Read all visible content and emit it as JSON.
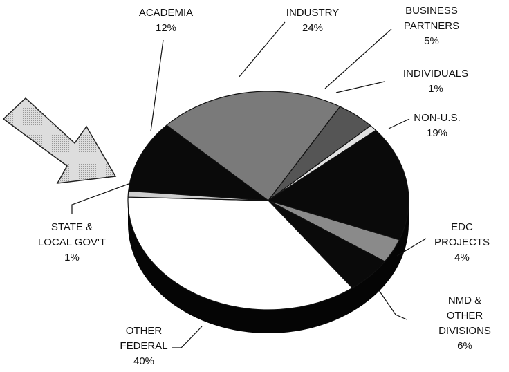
{
  "chart_data": {
    "type": "pie3d",
    "categories": [
      "ACADEMIA",
      "INDUSTRY",
      "BUSINESS\nPARTNERS",
      "INDIVIDUALS",
      "NON-U.S.",
      "EDC\nPROJECTS",
      "NMD & OTHER\nDIVISIONS",
      "OTHER\nFEDERAL",
      "STATE &\nLOCAL GOV'T"
    ],
    "values": [
      12,
      24,
      5,
      1,
      19,
      4,
      6,
      40,
      1
    ],
    "value_labels": [
      "12%",
      "24%",
      "5%",
      "1%",
      "19%",
      "4%",
      "6%",
      "40%",
      "1%"
    ],
    "colors": [
      "#0a0a0a",
      "#7a7a7a",
      "#555555",
      "#e2e2e2",
      "#0a0a0a",
      "#8a8a8a",
      "#0a0a0a",
      "#ffffff",
      "#cfcfcf"
    ]
  }
}
